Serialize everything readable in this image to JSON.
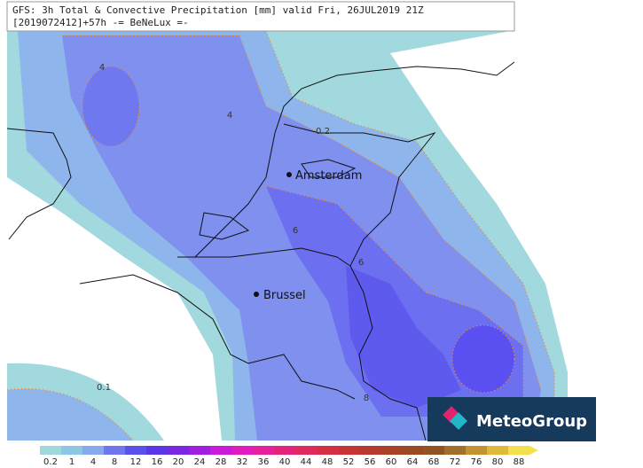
{
  "header": {
    "title": "GFS: 3h Total & Convective Precipitation [mm] valid Fri, 26JUL2019 21Z",
    "subtitle": "[2019072412]+57h -= BeNeLux =-"
  },
  "cities": [
    "Amsterdam",
    "Brussel"
  ],
  "contour_labels": [
    "4",
    "4",
    "0.2",
    "6",
    "6",
    "8",
    "0.1"
  ],
  "colorbar": {
    "labels": [
      "0.2",
      "1",
      "4",
      "8",
      "12",
      "16",
      "20",
      "24",
      "28",
      "32",
      "36",
      "40",
      "44",
      "48",
      "52",
      "56",
      "60",
      "64",
      "68",
      "72",
      "76",
      "80",
      "88"
    ],
    "colors": [
      "#9fd8dc",
      "#8cc6e6",
      "#86a8ee",
      "#6f76ef",
      "#5a50ec",
      "#5d36e8",
      "#7b26e4",
      "#a01ee0",
      "#c81ad8",
      "#e01cc0",
      "#e8209c",
      "#e4237a",
      "#de2a5c",
      "#d42f45",
      "#c83434",
      "#b83a2c",
      "#a84226",
      "#9a4a22",
      "#925422",
      "#a2702a",
      "#c49230",
      "#e0b83a",
      "#f4e04a"
    ]
  },
  "logo": "MeteoGroup"
}
